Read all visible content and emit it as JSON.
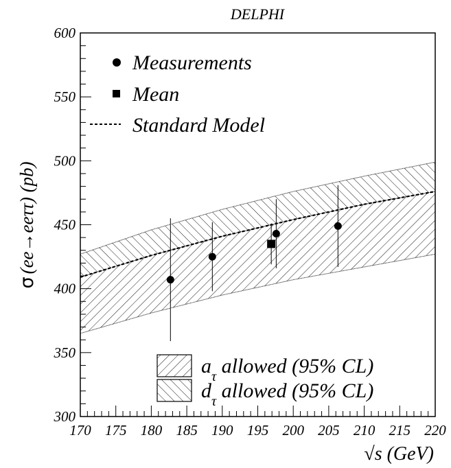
{
  "chart_data": {
    "type": "scatter",
    "title": "DELPHI",
    "ylabel_symbol": "σ",
    "ylabel_rest": "(ee→eeττ) (pb)",
    "xlabel": "√s (GeV)",
    "xlim": [
      170,
      220
    ],
    "ylim": [
      300,
      600
    ],
    "xticks": [
      170,
      175,
      180,
      185,
      190,
      195,
      200,
      205,
      210,
      215,
      220
    ],
    "yticks": [
      300,
      350,
      400,
      450,
      500,
      550,
      600
    ],
    "grid": false,
    "legend_top": {
      "placement": "top-left",
      "entries": [
        {
          "label": "Measurements",
          "marker": "circle"
        },
        {
          "label": "Mean",
          "marker": "square"
        },
        {
          "label": "Standard Model",
          "marker": "dashed-line"
        }
      ]
    },
    "legend_bottom": {
      "placement": "bottom-right",
      "entries": [
        {
          "label_main": "a",
          "label_sub": "τ",
          "label_tail": " allowed (95% CL)",
          "fill": "hatch-diagonal-up"
        },
        {
          "label_main": "d",
          "label_sub": "τ",
          "label_tail": " allowed (95% CL)",
          "fill": "hatch-diagonal-down"
        }
      ]
    },
    "series": [
      {
        "name": "Measurements",
        "marker": "circle",
        "points": [
          {
            "x": 182.7,
            "y": 407,
            "yerr_low": 48,
            "yerr_high": 48
          },
          {
            "x": 188.6,
            "y": 425,
            "yerr_low": 27,
            "yerr_high": 27
          },
          {
            "x": 197.6,
            "y": 443,
            "yerr_low": 27,
            "yerr_high": 27
          },
          {
            "x": 206.3,
            "y": 449,
            "yerr_low": 32,
            "yerr_high": 32
          }
        ]
      },
      {
        "name": "Mean",
        "marker": "square",
        "points": [
          {
            "x": 196.9,
            "y": 435,
            "yerr_low": 16,
            "yerr_high": 16
          }
        ]
      },
      {
        "name": "Standard Model",
        "type": "line",
        "style": "dashed",
        "x": [
          170,
          180,
          190,
          200,
          210,
          220
        ],
        "y": [
          409,
          426,
          441,
          454,
          466,
          476
        ]
      }
    ],
    "bands": [
      {
        "name": "a_tau allowed (95% CL)",
        "fill": "hatch-diagonal-up",
        "x": [
          170,
          180,
          190,
          200,
          210,
          220
        ],
        "lower": [
          365,
          381,
          395,
          407,
          417,
          427
        ],
        "upper": [
          409,
          426,
          441,
          454,
          466,
          476
        ]
      },
      {
        "name": "d_tau allowed (95% CL)",
        "fill": "hatch-diagonal-down",
        "x": [
          170,
          180,
          190,
          200,
          210,
          220
        ],
        "lower": [
          409,
          426,
          441,
          454,
          466,
          476
        ],
        "upper": [
          427,
          446,
          462,
          476,
          488,
          499
        ]
      }
    ]
  }
}
